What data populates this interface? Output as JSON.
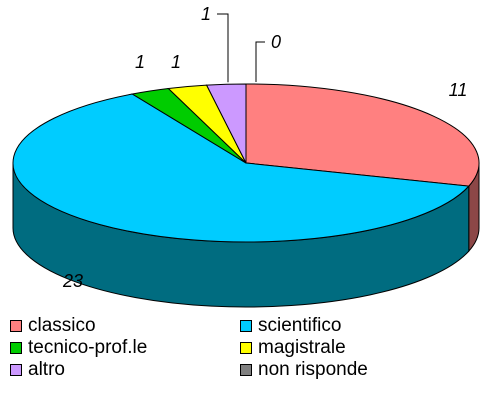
{
  "chart_data": {
    "type": "pie",
    "style": "3d",
    "categories": [
      "classico",
      "scientifico",
      "tecnico-prof.le",
      "magistrale",
      "altro",
      "non risponde"
    ],
    "values": [
      11,
      23,
      1,
      1,
      1,
      0
    ],
    "data_labels": [
      "11",
      "23",
      "1",
      "1",
      "1",
      "0"
    ],
    "colors": [
      "#FF8080",
      "#00CCFF",
      "#00CC00",
      "#FFFF00",
      "#CC99FF",
      "#808080"
    ],
    "side_colors": [
      "#8C4747",
      "#006C80",
      "#006C00",
      "#808000",
      "#664C80",
      "#404040"
    ],
    "legend_placement": "bottom"
  }
}
